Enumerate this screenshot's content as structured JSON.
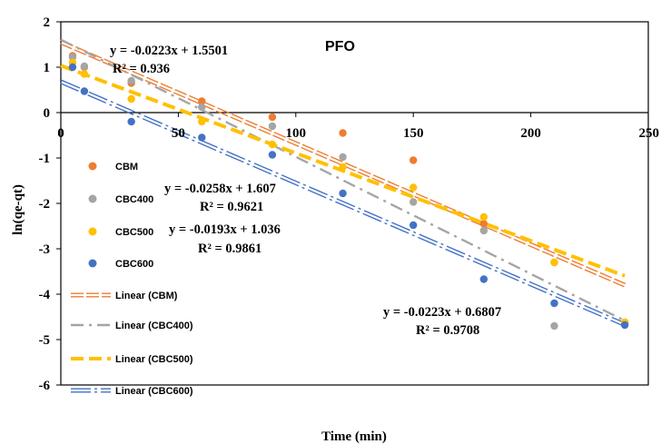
{
  "chart_data": {
    "type": "scatter",
    "title": "PFO",
    "xlabel": "Time (min)",
    "ylabel": "ln(qe-qt)",
    "xlim": [
      0,
      250
    ],
    "ylim": [
      -6,
      2
    ],
    "xticks": [
      "0",
      "50",
      "100",
      "150",
      "200",
      "250"
    ],
    "yticks": [
      "2",
      "1",
      "0",
      "-1",
      "-2",
      "-3",
      "-4",
      "-5",
      "-6"
    ],
    "grid": false,
    "legend_position": "left",
    "series": [
      {
        "name": "CBM",
        "color": "#ED7D31",
        "marker": "circle",
        "points": [
          [
            5,
            1.25
          ],
          [
            10,
            1.0
          ],
          [
            30,
            0.65
          ],
          [
            60,
            0.25
          ],
          [
            90,
            -0.1
          ],
          [
            120,
            -0.45
          ],
          [
            150,
            -1.05
          ],
          [
            180,
            -2.45
          ],
          [
            210,
            -3.3
          ],
          [
            240,
            -4.62
          ]
        ]
      },
      {
        "name": "CBC400",
        "color": "#A5A5A5",
        "marker": "circle",
        "points": [
          [
            5,
            1.22
          ],
          [
            10,
            1.02
          ],
          [
            30,
            0.7
          ],
          [
            60,
            0.12
          ],
          [
            90,
            -0.3
          ],
          [
            120,
            -0.98
          ],
          [
            150,
            -1.97
          ],
          [
            180,
            -2.6
          ],
          [
            210,
            -4.7
          ],
          [
            240,
            -4.65
          ]
        ]
      },
      {
        "name": "CBC500",
        "color": "#FFC000",
        "marker": "circle",
        "points": [
          [
            5,
            1.1
          ],
          [
            10,
            0.85
          ],
          [
            30,
            0.3
          ],
          [
            60,
            -0.2
          ],
          [
            90,
            -0.7
          ],
          [
            120,
            -1.2
          ],
          [
            150,
            -1.65
          ],
          [
            180,
            -2.3
          ],
          [
            210,
            -3.3
          ],
          [
            240,
            -4.62
          ]
        ]
      },
      {
        "name": "CBC600",
        "color": "#4472C4",
        "marker": "circle",
        "points": [
          [
            5,
            1.0
          ],
          [
            10,
            0.47
          ],
          [
            30,
            -0.2
          ],
          [
            60,
            -0.55
          ],
          [
            90,
            -0.93
          ],
          [
            120,
            -1.78
          ],
          [
            150,
            -2.48
          ],
          [
            180,
            -3.67
          ],
          [
            210,
            -4.2
          ],
          [
            240,
            -4.68
          ]
        ]
      }
    ],
    "trendlines": [
      {
        "name": "Linear (CBM)",
        "color": "#ED7D31",
        "style": "double",
        "slope": -0.0223,
        "intercept": 1.5501,
        "equation": "y = -0.0223x + 1.5501",
        "r2": "R² = 0.936"
      },
      {
        "name": "Linear (CBC400)",
        "color": "#A5A5A5",
        "style": "dash-dot",
        "slope": -0.0258,
        "intercept": 1.607,
        "equation": "y = -0.0258x + 1.607",
        "r2": "R² = 0.9621"
      },
      {
        "name": "Linear (CBC500)",
        "color": "#FFC000",
        "style": "dash",
        "slope": -0.0193,
        "intercept": 1.036,
        "equation": "y = -0.0193x + 1.036",
        "r2": "R² = 0.9861"
      },
      {
        "name": "Linear (CBC600)",
        "color": "#4472C4",
        "style": "double-dashdot",
        "slope": -0.0223,
        "intercept": 0.6807,
        "equation": "y = -0.0223x + 0.6807",
        "r2": "R² = 0.9708"
      }
    ]
  }
}
